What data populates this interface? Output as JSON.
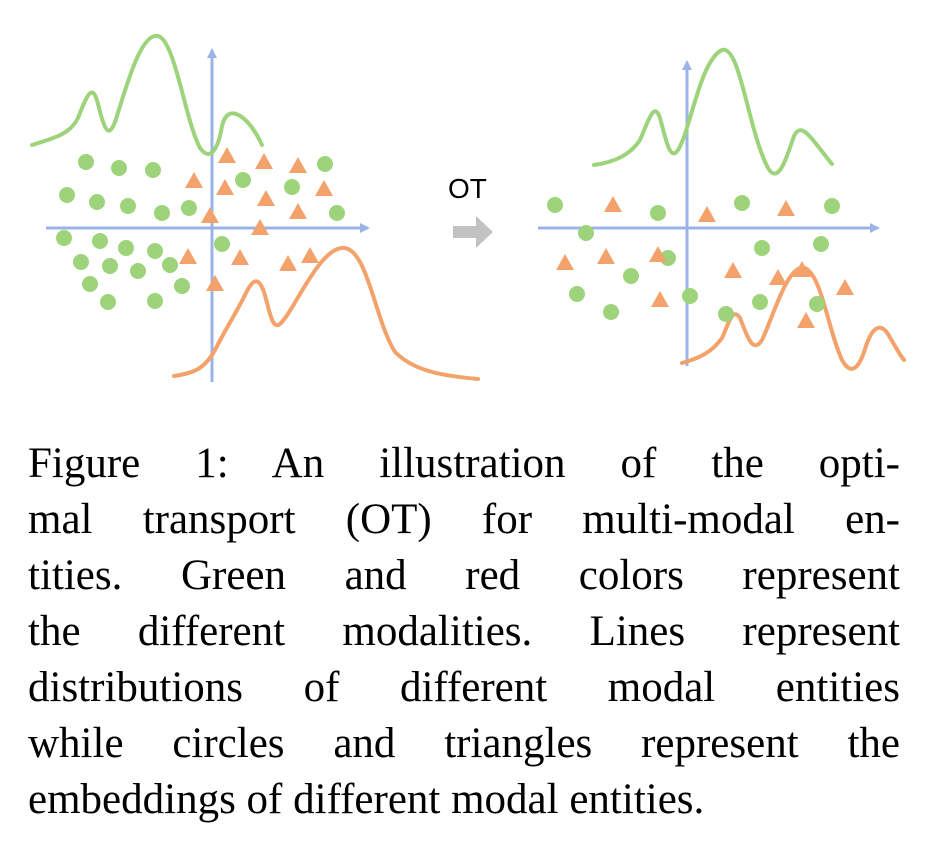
{
  "figure": {
    "arrow_label": "OT",
    "colors": {
      "green": "#9dd37a",
      "orange": "#f2a26a",
      "axis": "#9db3e8",
      "arrow": "#c2c2c2"
    }
  },
  "caption": {
    "lines": [
      "Figure 1: An illustration of the opti-",
      "mal transport (OT) for multi-modal en-",
      "tities.  Green and red colors represent",
      "the different modalities. Lines represent",
      "distributions of different modal entities",
      "while circles and triangles represent the",
      "embeddings of different modal entities."
    ]
  }
}
